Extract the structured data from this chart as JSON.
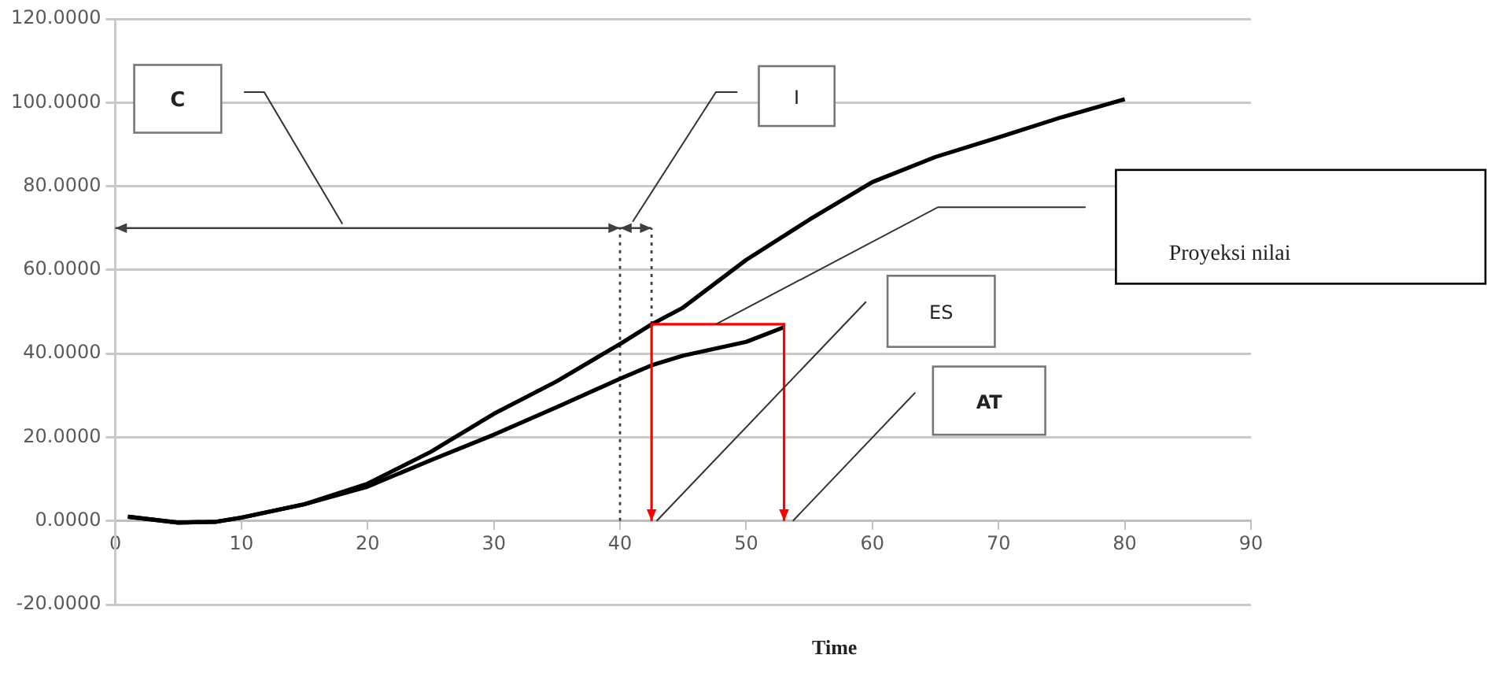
{
  "chart_data": {
    "type": "line",
    "xlabel": "Time",
    "xlim": [
      0,
      90
    ],
    "xticks": [
      0,
      10,
      20,
      30,
      40,
      50,
      60,
      70,
      80,
      90
    ],
    "ylim": [
      -20,
      120
    ],
    "yticks": [
      {
        "value": -20,
        "label": "-20.0000"
      },
      {
        "value": 0,
        "label": "0.0000"
      },
      {
        "value": 20,
        "label": "20.0000"
      },
      {
        "value": 40,
        "label": "40.0000"
      },
      {
        "value": 60,
        "label": "60.0000"
      },
      {
        "value": 80,
        "label": "80.0000"
      },
      {
        "value": 100,
        "label": "100.0000"
      },
      {
        "value": 120,
        "label": "120.0000"
      }
    ],
    "grid": "y",
    "series": [
      {
        "color": "#000000",
        "x": [
          1,
          3,
          5,
          8,
          10,
          15,
          20,
          25,
          30,
          35,
          40,
          42.5,
          45,
          50,
          55,
          60,
          65,
          70,
          75,
          80
        ],
        "values": [
          1,
          0.3,
          -0.4,
          -0.2,
          0.8,
          4,
          8.9,
          16.5,
          25.6,
          33.4,
          42.3,
          47,
          51,
          62.4,
          72,
          81,
          87,
          91.7,
          96.5,
          100.8
        ]
      },
      {
        "color": "#000000",
        "x": [
          1,
          3,
          5,
          8,
          10,
          15,
          20,
          25,
          30,
          35,
          40,
          42.5,
          45,
          50,
          53
        ],
        "values": [
          1,
          0.3,
          -0.4,
          -0.2,
          0.8,
          4,
          8.2,
          14.5,
          20.6,
          27.2,
          34,
          37.2,
          39.5,
          42.8,
          46.3
        ]
      },
      {
        "color": "#404040",
        "line_style": "dotted",
        "x": [
          40,
          40
        ],
        "values": [
          0,
          70
        ]
      },
      {
        "color": "#404040",
        "line_style": "dotted",
        "x": [
          42.5,
          42.5
        ],
        "values": [
          47,
          70
        ]
      }
    ],
    "annotations": [
      "C",
      "I",
      "Proyeksi nilai",
      "ES",
      "AT"
    ]
  }
}
